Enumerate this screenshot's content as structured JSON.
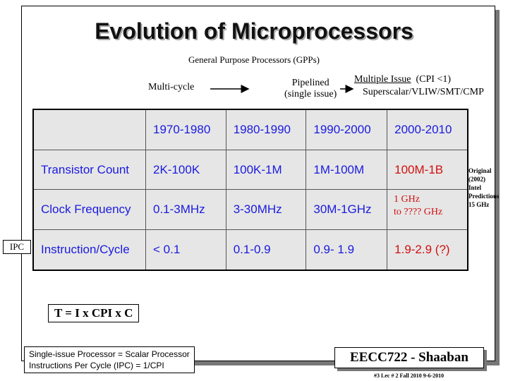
{
  "slide": {
    "title": "Evolution of Microprocessors",
    "subtitle": "General Purpose Processors (GPPs)",
    "multi_cycle": "Multi-cycle",
    "pipelined_line1": "Pipelined",
    "pipelined_line2": "(single issue)",
    "multiple_issue": "Multiple Issue",
    "cpi_note": "(CPI <1)",
    "superscalar": "Superscalar/VLIW/SMT/CMP",
    "table": {
      "headers": [
        "",
        "1970-1980",
        "1980-1990",
        "1990-2000",
        "2000-2010"
      ],
      "rows": [
        {
          "label": "Transistor Count",
          "values": [
            "2K-100K",
            "100K-1M",
            "1M-100M",
            "100M-1B"
          ]
        },
        {
          "label": "Clock Frequency",
          "values": [
            "0.1-3MHz",
            "3-30MHz",
            "30M-1GHz",
            ""
          ]
        },
        {
          "label": "Instruction/Cycle",
          "values": [
            "< 0.1",
            "0.1-0.9",
            "0.9- 1.9",
            "1.9-2.9 (?)"
          ]
        }
      ]
    },
    "ghz_line1": "1 GHz",
    "ghz_line2": "to  ???? GHz",
    "original_note": [
      "Original",
      "(2002)",
      "Intel",
      "Predictions",
      "15 GHz"
    ],
    "ipc_label": "IPC",
    "formula": "T  =  I  x  CPI   x C",
    "single_issue_line1": "Single-issue Processor = Scalar Processor",
    "single_issue_line2": "Instructions Per Cycle (IPC) = 1/CPI",
    "course": "EECC722 - Shaaban",
    "footer": "#3   Lec # 2   Fall 2010  9-6-2010",
    "colors": {
      "accent_blue": "#1a1ae0",
      "accent_red": "#d01010",
      "table_bg": "#e6e6e6"
    }
  }
}
